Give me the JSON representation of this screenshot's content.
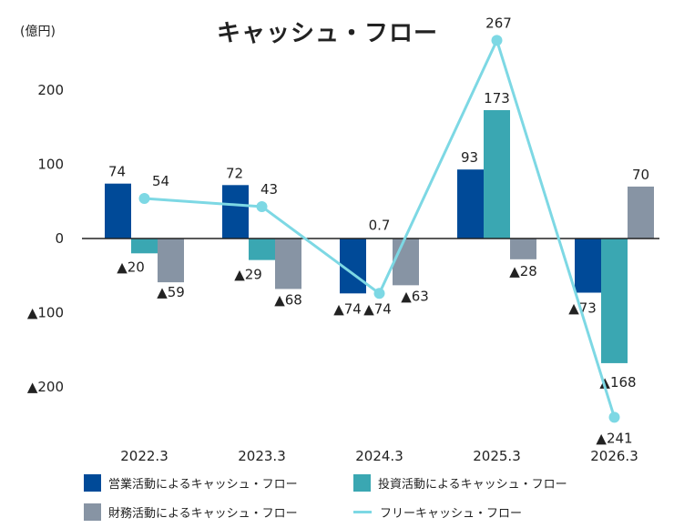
{
  "chart_data": {
    "type": "bar",
    "title": "キャッシュ・フロー",
    "unit": "(億円)",
    "categories": [
      "2022.3",
      "2023.3",
      "2024.3",
      "2025.3",
      "2026.3"
    ],
    "ylim": [
      -290,
      270
    ],
    "yticks": [
      {
        "value": 200,
        "label": "200"
      },
      {
        "value": 100,
        "label": "100"
      },
      {
        "value": 0,
        "label": "0"
      },
      {
        "value": -100,
        "label": "▲100"
      },
      {
        "value": -200,
        "label": "▲200"
      }
    ],
    "colors": {
      "operating": "#004a98",
      "investing": "#3aa7b2",
      "financing": "#8794a4",
      "free": "#7dd8e4"
    },
    "series": [
      {
        "name": "営業活動によるキャッシュ・フロー",
        "key": "operating",
        "type": "bar",
        "values": [
          74,
          72,
          -74,
          93,
          -73
        ],
        "labels": [
          "74",
          "72",
          "▲74",
          "93",
          "▲73"
        ]
      },
      {
        "name": "投資活動によるキャッシュ・フロー",
        "key": "investing",
        "type": "bar",
        "values": [
          -20,
          -29,
          0.7,
          173,
          -168
        ],
        "labels": [
          "▲20",
          "▲29",
          "0.7",
          "173",
          "▲168"
        ]
      },
      {
        "name": "財務活動によるキャッシュ・フロー",
        "key": "financing",
        "type": "bar",
        "values": [
          -59,
          -68,
          -63,
          -28,
          70
        ],
        "labels": [
          "▲59",
          "▲68",
          "▲63",
          "▲28",
          "70"
        ]
      },
      {
        "name": "フリーキャッシュ・フロー",
        "key": "free",
        "type": "line",
        "values": [
          54,
          43,
          -74,
          267,
          -241
        ],
        "labels": [
          "54",
          "43",
          "▲74",
          "267",
          "▲241"
        ]
      }
    ],
    "legend_position": "bottom"
  }
}
